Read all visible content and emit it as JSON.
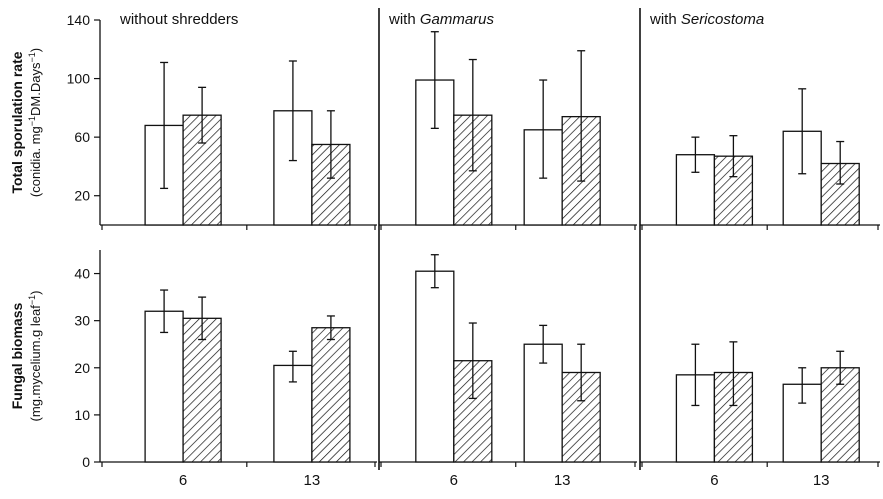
{
  "chart_data": {
    "type": "bar",
    "panels": [
      {
        "prefix": "without shredders",
        "italic": ""
      },
      {
        "prefix": "with ",
        "italic": "Gammarus"
      },
      {
        "prefix": "with ",
        "italic": "Sericostoma"
      }
    ],
    "categories": [
      "6",
      "13"
    ],
    "fills": [
      "open",
      "hatched"
    ],
    "rows": [
      {
        "ylabel_bold": "Total sporulation rate",
        "ylabel_sub": "(conidia. mg",
        "ylabel_sup1": "−1",
        "ylabel_mid": "DM.Days",
        "ylabel_sup2": "−1",
        "ylabel_end": ")",
        "ylim": [
          0,
          140
        ],
        "yticks": [
          20,
          60,
          100,
          140
        ],
        "data": [
          [
            [
              {
                "v": 68,
                "lo": 25,
                "hi": 111
              },
              {
                "v": 75,
                "lo": 56,
                "hi": 94
              }
            ],
            [
              {
                "v": 78,
                "lo": 44,
                "hi": 112
              },
              {
                "v": 55,
                "lo": 32,
                "hi": 78
              }
            ]
          ],
          [
            [
              {
                "v": 99,
                "lo": 66,
                "hi": 132
              },
              {
                "v": 75,
                "lo": 37,
                "hi": 113
              }
            ],
            [
              {
                "v": 65,
                "lo": 32,
                "hi": 99
              },
              {
                "v": 74,
                "lo": 30,
                "hi": 119
              }
            ]
          ],
          [
            [
              {
                "v": 48,
                "lo": 36,
                "hi": 60
              },
              {
                "v": 47,
                "lo": 33,
                "hi": 61
              }
            ],
            [
              {
                "v": 64,
                "lo": 35,
                "hi": 93
              },
              {
                "v": 42,
                "lo": 28,
                "hi": 57
              }
            ]
          ]
        ]
      },
      {
        "ylabel_bold": "Fungal biomass",
        "ylabel_sub": "(mg.mycelium.g leaf",
        "ylabel_sup1": "−1",
        "ylabel_mid": "",
        "ylabel_sup2": "",
        "ylabel_end": ")",
        "ylim": [
          0,
          45
        ],
        "yticks": [
          0,
          10,
          20,
          30,
          40
        ],
        "data": [
          [
            [
              {
                "v": 32,
                "lo": 27.5,
                "hi": 36.5
              },
              {
                "v": 30.5,
                "lo": 26,
                "hi": 35
              }
            ],
            [
              {
                "v": 20.5,
                "lo": 17,
                "hi": 23.5
              },
              {
                "v": 28.5,
                "lo": 26,
                "hi": 31
              }
            ]
          ],
          [
            [
              {
                "v": 40.5,
                "lo": 37,
                "hi": 44
              },
              {
                "v": 21.5,
                "lo": 13.5,
                "hi": 29.5
              }
            ],
            [
              {
                "v": 25,
                "lo": 21,
                "hi": 29
              },
              {
                "v": 19,
                "lo": 13,
                "hi": 25
              }
            ]
          ],
          [
            [
              {
                "v": 18.5,
                "lo": 12,
                "hi": 25
              },
              {
                "v": 19,
                "lo": 12,
                "hi": 25.5
              }
            ],
            [
              {
                "v": 16.5,
                "lo": 12.5,
                "hi": 20
              },
              {
                "v": 20,
                "lo": 16.5,
                "hi": 23.5
              }
            ]
          ]
        ]
      }
    ]
  }
}
